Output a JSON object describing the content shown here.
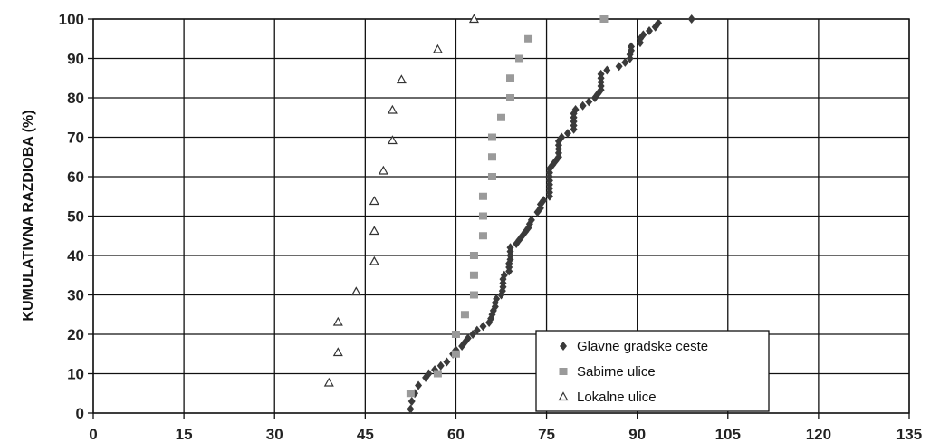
{
  "chart_data": {
    "type": "scatter",
    "title": "",
    "xlabel": "",
    "ylabel": "KUMULATIVNA RAZDIOBA (%)",
    "xlim": [
      0,
      135
    ],
    "ylim": [
      0,
      100
    ],
    "xticks": [
      0,
      15,
      30,
      45,
      60,
      75,
      90,
      105,
      120,
      135
    ],
    "yticks": [
      0,
      10,
      20,
      30,
      40,
      50,
      60,
      70,
      80,
      90,
      100
    ],
    "grid": true,
    "legend_position": "bottom-right",
    "series": [
      {
        "name": "Glavne gradske ceste",
        "marker": "diamond",
        "color": "#3a3a3a",
        "points": [
          [
            52.5,
            1
          ],
          [
            52.7,
            3
          ],
          [
            53.2,
            5
          ],
          [
            53.8,
            7
          ],
          [
            55,
            9
          ],
          [
            55.5,
            10
          ],
          [
            56.5,
            11
          ],
          [
            57.5,
            12
          ],
          [
            58.5,
            13
          ],
          [
            59.5,
            15
          ],
          [
            60,
            16
          ],
          [
            61,
            17
          ],
          [
            61.5,
            18
          ],
          [
            62,
            19
          ],
          [
            62.8,
            20
          ],
          [
            63.5,
            21
          ],
          [
            64.5,
            22
          ],
          [
            65.5,
            23
          ],
          [
            65.8,
            24
          ],
          [
            66,
            25
          ],
          [
            66.2,
            26
          ],
          [
            66.5,
            27
          ],
          [
            66.5,
            28
          ],
          [
            66.7,
            29
          ],
          [
            67.5,
            30
          ],
          [
            67.7,
            31
          ],
          [
            67.8,
            32
          ],
          [
            67.8,
            33
          ],
          [
            67.8,
            34
          ],
          [
            68,
            35
          ],
          [
            68.8,
            36
          ],
          [
            68.8,
            37
          ],
          [
            68.8,
            38
          ],
          [
            69,
            39
          ],
          [
            69,
            40
          ],
          [
            69,
            41
          ],
          [
            69,
            42
          ],
          [
            70,
            43
          ],
          [
            70.5,
            44
          ],
          [
            71,
            45
          ],
          [
            71.5,
            46
          ],
          [
            72,
            47
          ],
          [
            72.2,
            48
          ],
          [
            72.5,
            49
          ],
          [
            73.5,
            51
          ],
          [
            74,
            52
          ],
          [
            74,
            53
          ],
          [
            74.5,
            54
          ],
          [
            75.5,
            55
          ],
          [
            75.5,
            56
          ],
          [
            75.5,
            57
          ],
          [
            75.5,
            58
          ],
          [
            75.5,
            59
          ],
          [
            75.5,
            60
          ],
          [
            75.5,
            61
          ],
          [
            75.5,
            62
          ],
          [
            76,
            63
          ],
          [
            76.5,
            64
          ],
          [
            77,
            65
          ],
          [
            77,
            66
          ],
          [
            77,
            67
          ],
          [
            77,
            68
          ],
          [
            77,
            69
          ],
          [
            77.5,
            70
          ],
          [
            78.5,
            71
          ],
          [
            79.5,
            72
          ],
          [
            79.5,
            73
          ],
          [
            79.5,
            74
          ],
          [
            79.5,
            75
          ],
          [
            79.5,
            76
          ],
          [
            79.8,
            77
          ],
          [
            81,
            78
          ],
          [
            82,
            79
          ],
          [
            83,
            80
          ],
          [
            83.5,
            81
          ],
          [
            84,
            82
          ],
          [
            84,
            83
          ],
          [
            84,
            84
          ],
          [
            84,
            85
          ],
          [
            84,
            86
          ],
          [
            85,
            87
          ],
          [
            87,
            88
          ],
          [
            88,
            89
          ],
          [
            88.8,
            90
          ],
          [
            88.8,
            91
          ],
          [
            89,
            92
          ],
          [
            89,
            93
          ],
          [
            90.5,
            94
          ],
          [
            90.5,
            95
          ],
          [
            91,
            96
          ],
          [
            92,
            97
          ],
          [
            93,
            98
          ],
          [
            93.5,
            99
          ],
          [
            99,
            100
          ]
        ]
      },
      {
        "name": "Sabirne ulice",
        "marker": "square",
        "color": "#9a9a9a",
        "points": [
          [
            52.5,
            5
          ],
          [
            57,
            10
          ],
          [
            60,
            15
          ],
          [
            60,
            20
          ],
          [
            61.5,
            25
          ],
          [
            63,
            30
          ],
          [
            63,
            35
          ],
          [
            63,
            40
          ],
          [
            64.5,
            45
          ],
          [
            64.5,
            50
          ],
          [
            64.5,
            55
          ],
          [
            66,
            60
          ],
          [
            66,
            65
          ],
          [
            66,
            70
          ],
          [
            67.5,
            75
          ],
          [
            69,
            80
          ],
          [
            69,
            85
          ],
          [
            70.5,
            90
          ],
          [
            72,
            95
          ],
          [
            84.5,
            100
          ]
        ]
      },
      {
        "name": "Lokalne ulice",
        "marker": "triangle",
        "color": "#333333",
        "points": [
          [
            39,
            7.7
          ],
          [
            40.5,
            15.4
          ],
          [
            40.5,
            23.1
          ],
          [
            43.5,
            30.8
          ],
          [
            46.5,
            38.5
          ],
          [
            46.5,
            46.2
          ],
          [
            46.5,
            53.8
          ],
          [
            48,
            61.5
          ],
          [
            49.5,
            69.2
          ],
          [
            49.5,
            76.9
          ],
          [
            51,
            84.6
          ],
          [
            57,
            92.3
          ],
          [
            63,
            100
          ]
        ]
      }
    ]
  }
}
